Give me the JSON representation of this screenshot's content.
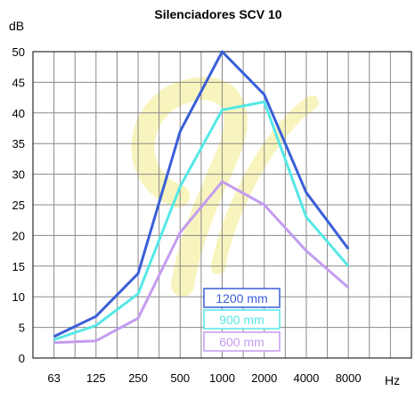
{
  "chart_data": {
    "type": "line",
    "title": "Silenciadores SCV 10",
    "ylabel": "dB",
    "xlabel": "Hz",
    "categories": [
      "63",
      "125",
      "250",
      "500",
      "1000",
      "2000",
      "4000",
      "8000"
    ],
    "ylim": [
      0,
      50
    ],
    "yticks": [
      0,
      5,
      10,
      15,
      20,
      25,
      30,
      35,
      40,
      45,
      50
    ],
    "grid": true,
    "legend_position": "center-bottom",
    "series": [
      {
        "name": "1200 mm",
        "color": "#3a5fd8",
        "values": [
          3.5,
          6.8,
          13.8,
          37,
          50,
          43,
          27,
          17.8
        ]
      },
      {
        "name": "900 mm",
        "color": "#55e8e6",
        "values": [
          3,
          5.3,
          10.5,
          28,
          40.5,
          41.8,
          23,
          15
        ]
      },
      {
        "name": "600 mm",
        "color": "#c49cf0",
        "values": [
          2.5,
          2.8,
          6.5,
          20.5,
          28.8,
          25,
          17.5,
          11.5
        ]
      }
    ]
  }
}
